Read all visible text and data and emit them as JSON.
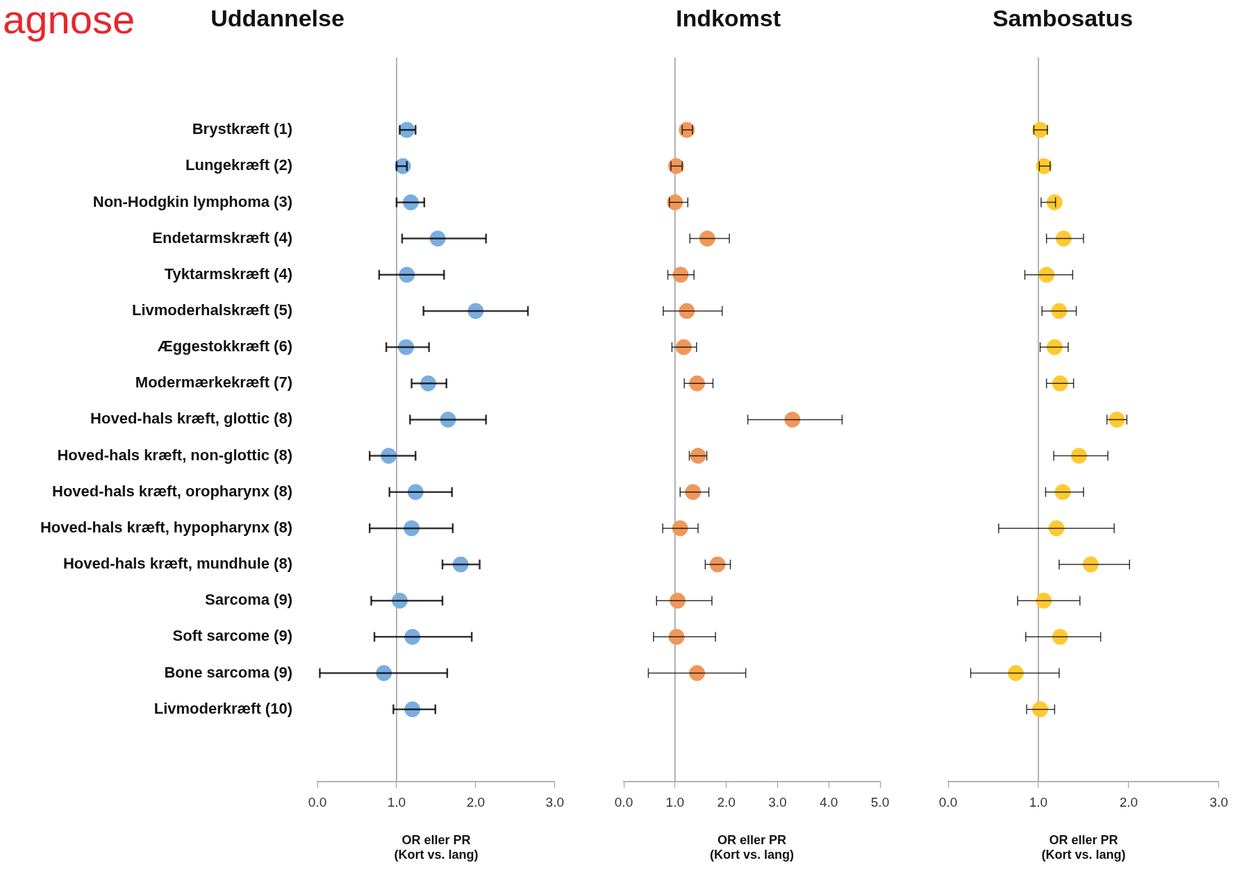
{
  "chart_data": [
    {
      "type": "scatter",
      "orientation": "horizontal",
      "title": "Uddannelse",
      "xlabel": "OR eller PR\n(Kort vs. lang)",
      "annotations": [
        "agnose"
      ],
      "categories": [
        "Brystkræft (1)",
        "Lungekræft (2)",
        "Non-Hodgkin lymphoma (3)",
        "Endetarmskræft (4)",
        "Tyktarmskræft (4)",
        "Livmoderhalskræft (5)",
        "Æggestokkræft (6)",
        "Modermærkekræft (7)",
        "Hoved-hals kræft, glottic (8)",
        "Hoved-hals kræft, non-glottic (8)",
        "Hoved-hals kræft, oropharynx (8)",
        "Hoved-hals kræft, hypopharynx (8)",
        "Hoved-hals kræft, mundhule (8)",
        "Sarcoma (9)",
        "Soft sarcome (9)",
        "Bone sarcoma (9)",
        "Livmoderkræft (10)"
      ],
      "values": [
        1.13,
        1.08,
        1.18,
        1.52,
        1.13,
        2.0,
        1.12,
        1.4,
        1.65,
        0.9,
        1.24,
        1.19,
        1.81,
        1.04,
        1.2,
        0.84,
        1.2
      ],
      "errors": [
        [
          1.04,
          1.24
        ],
        [
          1.0,
          1.13
        ],
        [
          1.0,
          1.35
        ],
        [
          1.07,
          2.13
        ],
        [
          0.78,
          1.6
        ],
        [
          1.34,
          2.66
        ],
        [
          0.87,
          1.41
        ],
        [
          1.19,
          1.63
        ],
        [
          1.17,
          2.13
        ],
        [
          0.66,
          1.24
        ],
        [
          0.91,
          1.7
        ],
        [
          0.66,
          1.71
        ],
        [
          1.58,
          2.05
        ],
        [
          0.68,
          1.58
        ],
        [
          0.72,
          1.95
        ],
        [
          0.03,
          1.64
        ],
        [
          0.96,
          1.49
        ]
      ],
      "color": "#7aaddf",
      "marker": "circle",
      "xlim": [
        0,
        3
      ],
      "xticks": [
        {
          "value": 0,
          "label": "0.0"
        },
        {
          "value": 1,
          "label": "1.0"
        },
        {
          "value": 2,
          "label": "2.0"
        },
        {
          "value": 3,
          "label": "3.0"
        }
      ],
      "ref_lines": [
        {
          "axis": "x",
          "value": 1,
          "color": "#999999"
        }
      ]
    },
    {
      "type": "scatter",
      "orientation": "horizontal",
      "title": "Indkomst",
      "xlabel": "OR eller PR\n(Kort vs. lang)",
      "tick_labels": "x",
      "categories": [
        null,
        null,
        null,
        null,
        null,
        null,
        null,
        null,
        null,
        null,
        null,
        null,
        null,
        null,
        null,
        null,
        null
      ],
      "values": [
        1.23,
        1.02,
        1.0,
        1.63,
        1.11,
        1.23,
        1.17,
        1.43,
        3.29,
        1.45,
        1.35,
        1.1,
        1.83,
        1.05,
        1.03,
        1.43,
        null
      ],
      "errors": [
        [
          1.14,
          1.34
        ],
        [
          0.92,
          1.14
        ],
        [
          0.89,
          1.25
        ],
        [
          1.29,
          2.06
        ],
        [
          0.86,
          1.37
        ],
        [
          0.77,
          1.92
        ],
        [
          0.94,
          1.42
        ],
        [
          1.18,
          1.74
        ],
        [
          2.42,
          4.26
        ],
        [
          1.28,
          1.62
        ],
        [
          1.1,
          1.66
        ],
        [
          0.76,
          1.45
        ],
        [
          1.59,
          2.08
        ],
        [
          0.64,
          1.72
        ],
        [
          0.58,
          1.79
        ],
        [
          0.48,
          2.38
        ],
        null
      ],
      "color": "#f0975a",
      "marker": "circle",
      "xlim": [
        0,
        5
      ],
      "xticks": [
        {
          "value": 0,
          "label": "0.0"
        },
        {
          "value": 1,
          "label": "1.0"
        },
        {
          "value": 2,
          "label": "2.0"
        },
        {
          "value": 3,
          "label": "3.0"
        },
        {
          "value": 4,
          "label": "4.0"
        },
        {
          "value": 5,
          "label": "5.0"
        }
      ],
      "ref_lines": [
        {
          "axis": "x",
          "value": 1,
          "color": "#999999"
        }
      ]
    },
    {
      "type": "scatter",
      "orientation": "horizontal",
      "title": "Sambosatus",
      "xlabel": "OR eller PR\n(Kort vs. lang)",
      "tick_labels": "x",
      "categories": [
        null,
        null,
        null,
        null,
        null,
        null,
        null,
        null,
        null,
        null,
        null,
        null,
        null,
        null,
        null,
        null,
        null
      ],
      "values": [
        1.02,
        1.06,
        1.18,
        1.28,
        1.09,
        1.23,
        1.18,
        1.24,
        1.87,
        1.45,
        1.27,
        1.2,
        1.58,
        1.06,
        1.24,
        0.75,
        1.02
      ],
      "errors": [
        [
          0.95,
          1.1
        ],
        [
          1.01,
          1.13
        ],
        [
          1.03,
          1.19
        ],
        [
          1.09,
          1.5
        ],
        [
          0.85,
          1.38
        ],
        [
          1.04,
          1.42
        ],
        [
          1.02,
          1.33
        ],
        [
          1.09,
          1.39
        ],
        [
          1.76,
          1.98
        ],
        [
          1.17,
          1.77
        ],
        [
          1.08,
          1.5
        ],
        [
          0.56,
          1.84
        ],
        [
          1.23,
          2.01
        ],
        [
          0.77,
          1.46
        ],
        [
          0.86,
          1.69
        ],
        [
          0.25,
          1.23
        ],
        [
          0.87,
          1.18
        ]
      ],
      "color": "#ffc92f",
      "marker": "circle",
      "xlim": [
        0,
        3
      ],
      "xticks": [
        {
          "value": 0,
          "label": "0.0"
        },
        {
          "value": 1,
          "label": "1.0"
        },
        {
          "value": 2,
          "label": "2.0"
        },
        {
          "value": 3,
          "label": "3.0"
        }
      ],
      "ref_lines": [
        {
          "axis": "x",
          "value": 1,
          "color": "#999999"
        }
      ]
    }
  ]
}
